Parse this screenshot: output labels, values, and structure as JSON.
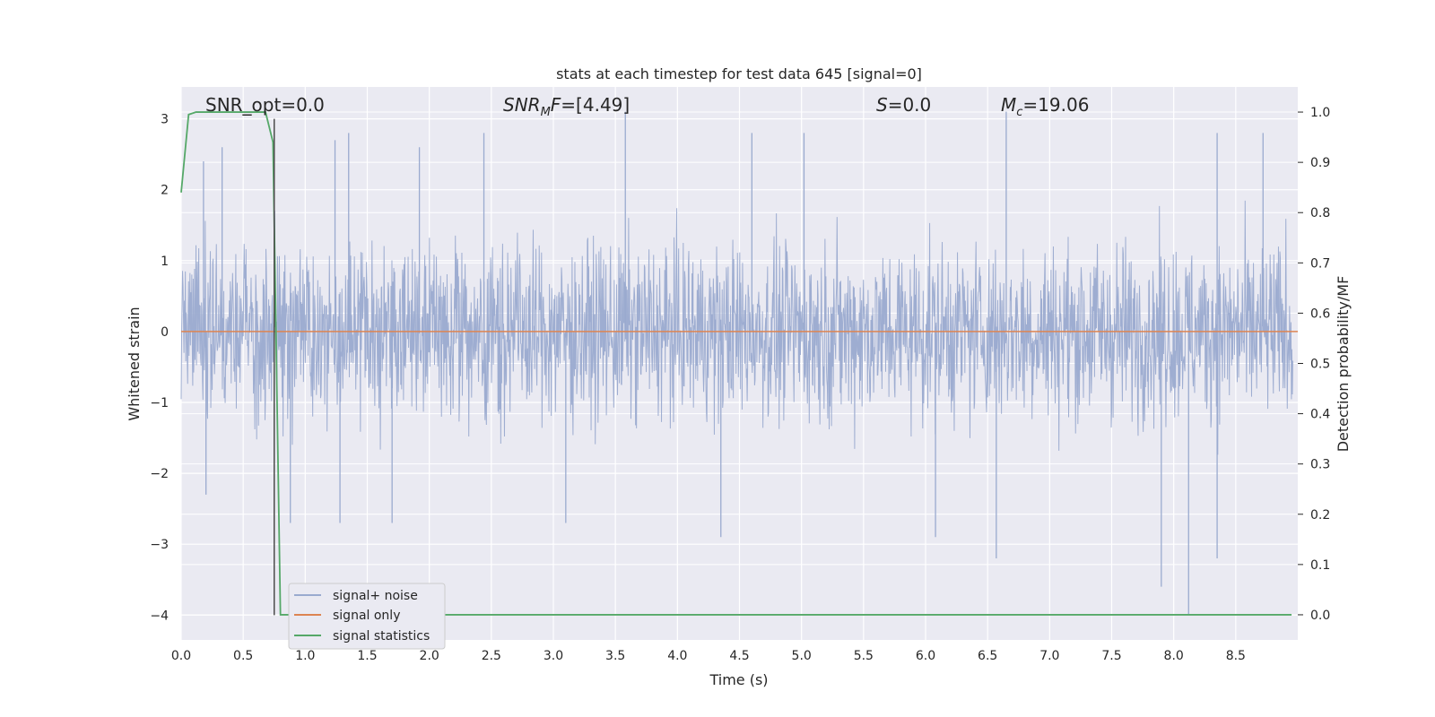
{
  "chart_data": {
    "type": "line",
    "title": "stats at each timestep for test data 645 [signal=0]",
    "xlabel": "Time (s)",
    "ylabel_left": "Whitened strain",
    "ylabel_right": "Detection probability/MF",
    "xlim": [
      0.0,
      9.0
    ],
    "ylim_left": [
      -4.35,
      3.45
    ],
    "ylim_right": [
      -0.05,
      1.05
    ],
    "x_ticks": [
      "0.0",
      "0.5",
      "1.0",
      "1.5",
      "2.0",
      "2.5",
      "3.0",
      "3.5",
      "4.0",
      "4.5",
      "5.0",
      "5.5",
      "6.0",
      "6.5",
      "7.0",
      "7.5",
      "8.0",
      "8.5"
    ],
    "y_left_ticks": [
      "3",
      "2",
      "1",
      "0",
      "−1",
      "−2",
      "−3",
      "−4"
    ],
    "y_right_ticks": [
      "1.0",
      "0.9",
      "0.8",
      "0.7",
      "0.6",
      "0.5",
      "0.4",
      "0.3",
      "0.2",
      "0.1",
      "0.0"
    ],
    "grid": true,
    "background": "#eaeaf2",
    "annotations": [
      {
        "text": "SNR_opt=0.0",
        "x": 0.2,
        "y": 3.1
      },
      {
        "text": "SNR_MF=[4.49]",
        "x": 2.6,
        "y": 3.1
      },
      {
        "text": "S=0.0",
        "x": 5.6,
        "y": 3.1
      },
      {
        "text": "M_c=19.06",
        "x": 6.6,
        "y": 3.1
      }
    ],
    "vertical_marker": {
      "x": 0.75,
      "y_range": [
        -4.0,
        3.0
      ],
      "color": "#4c4c4c"
    },
    "legend_position": "lower left",
    "series": [
      {
        "name": "signal+ noise",
        "color": "#9aaacf",
        "axis": "left",
        "description_stats": {
          "typical_range": [
            -1.5,
            1.8
          ],
          "min": -4.0,
          "max": 3.1
        },
        "spikes": [
          {
            "x": 0.18,
            "y": 2.4
          },
          {
            "x": 0.33,
            "y": 2.6
          },
          {
            "x": 1.24,
            "y": 2.7
          },
          {
            "x": 1.35,
            "y": 2.8
          },
          {
            "x": 1.92,
            "y": 2.6
          },
          {
            "x": 2.44,
            "y": 2.8
          },
          {
            "x": 3.58,
            "y": 3.1
          },
          {
            "x": 4.6,
            "y": 2.8
          },
          {
            "x": 5.02,
            "y": 2.8
          },
          {
            "x": 6.65,
            "y": 3.1
          },
          {
            "x": 8.35,
            "y": 2.8
          },
          {
            "x": 8.72,
            "y": 2.8
          },
          {
            "x": 0.2,
            "y": -2.3
          },
          {
            "x": 0.88,
            "y": -2.7
          },
          {
            "x": 1.28,
            "y": -2.7
          },
          {
            "x": 1.7,
            "y": -2.7
          },
          {
            "x": 3.1,
            "y": -2.7
          },
          {
            "x": 4.35,
            "y": -2.9
          },
          {
            "x": 6.08,
            "y": -2.9
          },
          {
            "x": 6.57,
            "y": -3.2
          },
          {
            "x": 7.9,
            "y": -3.6
          },
          {
            "x": 8.12,
            "y": -4.0
          },
          {
            "x": 8.35,
            "y": -3.2
          }
        ]
      },
      {
        "name": "signal only",
        "color": "#dd8452",
        "axis": "left",
        "values_constant": 0.0
      },
      {
        "name": "signal statistics",
        "color": "#55a868",
        "axis": "right",
        "points": [
          {
            "x": 0.0,
            "y": 0.84
          },
          {
            "x": 0.06,
            "y": 0.995
          },
          {
            "x": 0.12,
            "y": 1.0
          },
          {
            "x": 0.68,
            "y": 1.0
          },
          {
            "x": 0.74,
            "y": 0.94
          },
          {
            "x": 0.8,
            "y": 0.0
          },
          {
            "x": 8.95,
            "y": 0.0
          }
        ]
      }
    ]
  }
}
